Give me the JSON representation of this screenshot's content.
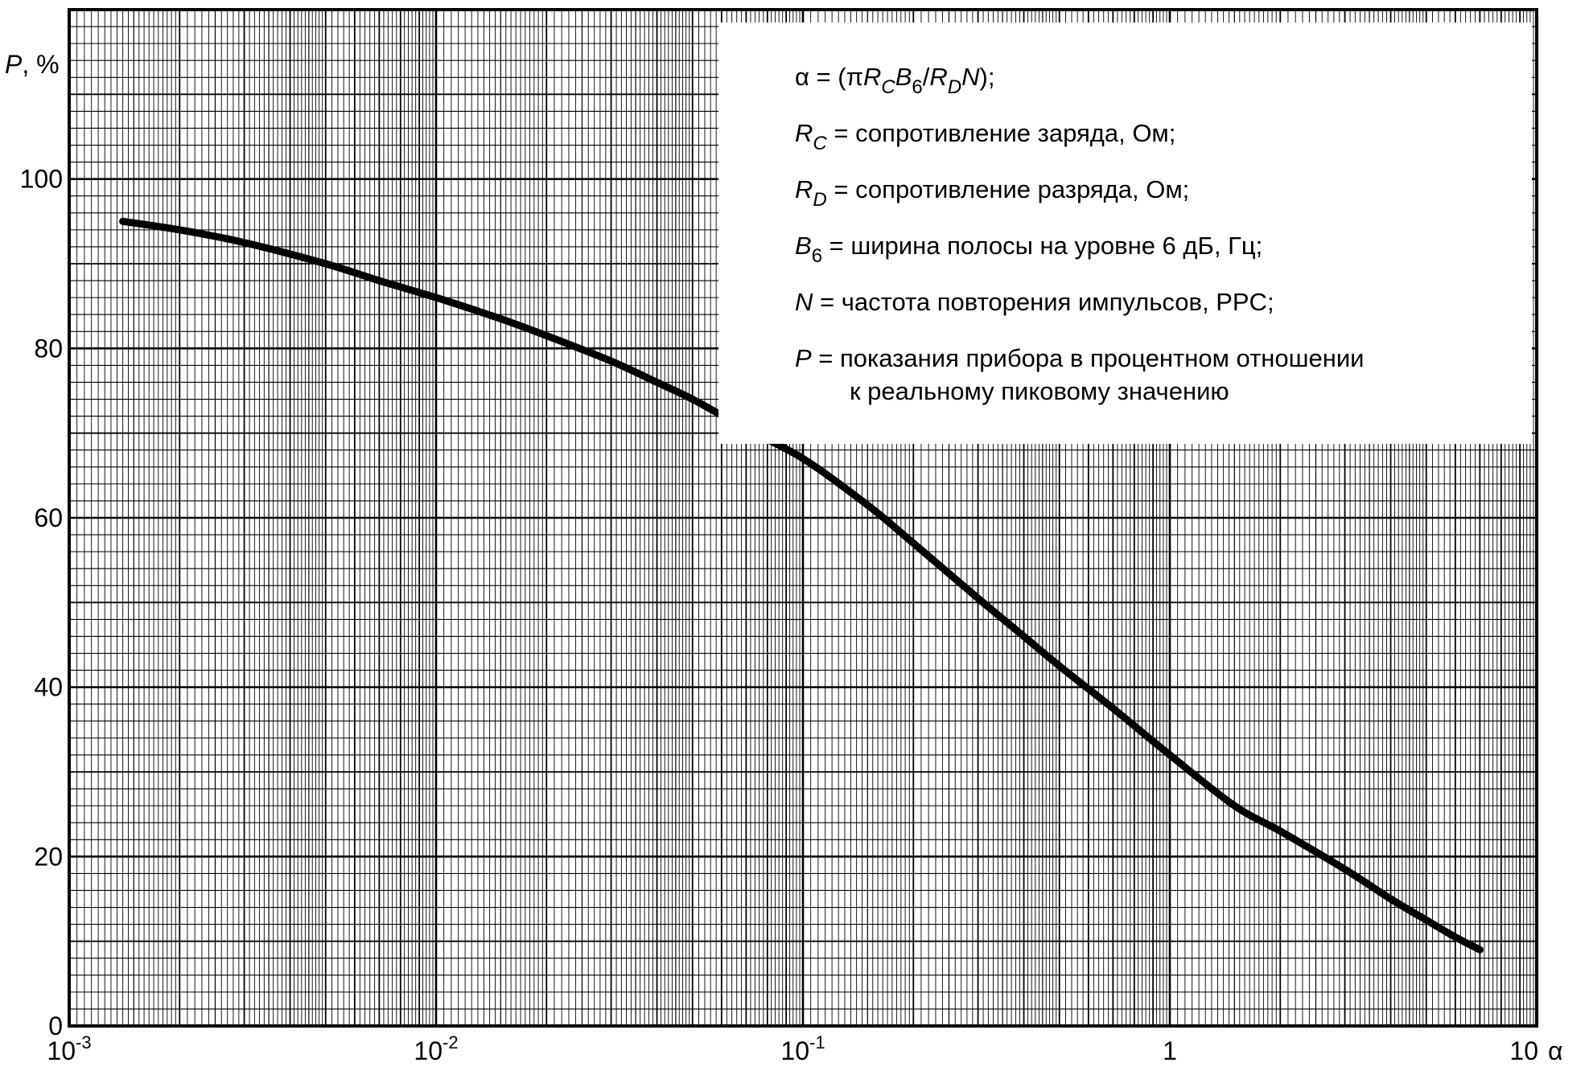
{
  "chart_data": {
    "type": "line",
    "xscale": "log",
    "xlim": [
      0.001,
      10
    ],
    "ylim": [
      0,
      120
    ],
    "grid": true,
    "ylabel_var": "P",
    "ylabel_unit": ", %",
    "xlabel": "α",
    "y_ticks": [
      "0",
      "20",
      "40",
      "60",
      "80",
      "100"
    ],
    "x_ticks": [
      {
        "value": 0.001,
        "base": "10",
        "exp": "-3"
      },
      {
        "value": 0.01,
        "base": "10",
        "exp": "-2"
      },
      {
        "value": 0.1,
        "base": "10",
        "exp": "-1"
      },
      {
        "value": 1,
        "base": "1",
        "exp": ""
      },
      {
        "value": 10,
        "base": "10",
        "exp": ""
      }
    ],
    "series": [
      {
        "color": "#000000",
        "x": [
          0.0014,
          0.002,
          0.003,
          0.005,
          0.007,
          0.01,
          0.015,
          0.02,
          0.03,
          0.04,
          0.05,
          0.07,
          0.1,
          0.15,
          0.2,
          0.3,
          0.4,
          0.5,
          0.7,
          1,
          1.5,
          2,
          3,
          4,
          5,
          6,
          7
        ],
        "y": [
          95,
          94,
          92.5,
          90,
          88,
          86,
          83.5,
          81.5,
          78.5,
          76,
          74,
          70.5,
          67,
          61.5,
          57,
          50.5,
          46,
          42.5,
          37.5,
          32,
          26,
          23,
          18.5,
          15,
          12.5,
          10.5,
          9
        ]
      }
    ],
    "legend": {
      "lines": [
        {
          "parts": [
            {
              "t": "α = (π",
              "s": "n"
            },
            {
              "t": "R",
              "s": "i"
            },
            {
              "t": "C",
              "s": "is"
            },
            {
              "t": "B",
              "s": "i"
            },
            {
              "t": "6",
              "s": "s"
            },
            {
              "t": "/",
              "s": "n"
            },
            {
              "t": "R",
              "s": "i"
            },
            {
              "t": "D",
              "s": "is"
            },
            {
              "t": "N",
              "s": "i"
            },
            {
              "t": ");",
              "s": "n"
            }
          ]
        },
        {
          "parts": [
            {
              "t": "R",
              "s": "i"
            },
            {
              "t": "C",
              "s": "is"
            },
            {
              "t": " = сопротивление заряда, Ом;",
              "s": "n"
            }
          ]
        },
        {
          "parts": [
            {
              "t": "R",
              "s": "i"
            },
            {
              "t": "D",
              "s": "is"
            },
            {
              "t": " = сопротивление разряда, Ом;",
              "s": "n"
            }
          ]
        },
        {
          "parts": [
            {
              "t": "B",
              "s": "i"
            },
            {
              "t": "6",
              "s": "s"
            },
            {
              "t": " = ширина полосы на уровне 6 дБ, Гц;",
              "s": "n"
            }
          ]
        },
        {
          "parts": [
            {
              "t": "N",
              "s": "i"
            },
            {
              "t": " = частота повторения импульсов, PPC;",
              "s": "n"
            }
          ]
        },
        {
          "parts": [
            {
              "t": "P",
              "s": "i"
            },
            {
              "t": " = показания прибора в процентном отношении",
              "s": "n"
            }
          ]
        },
        {
          "parts": [
            {
              "t": "к реальному пиковому значению",
              "s": "n"
            }
          ],
          "indent": true
        }
      ]
    }
  }
}
